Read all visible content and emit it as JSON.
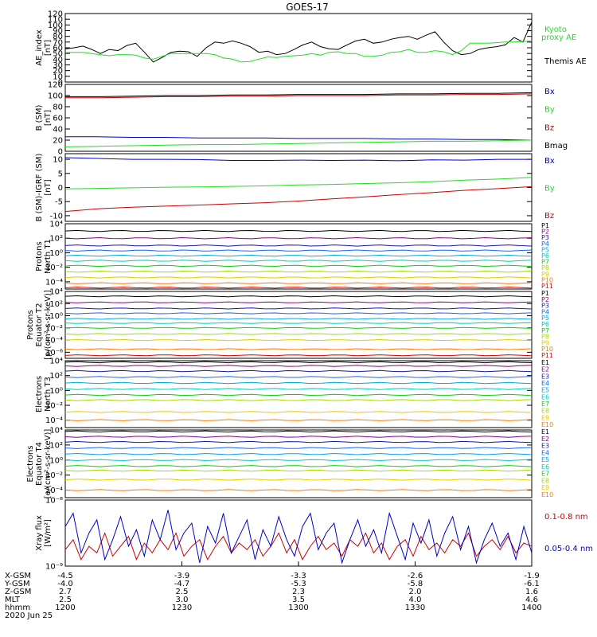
{
  "title": "GOES-17",
  "colors": {
    "black": "#000000",
    "green": "#22dd22",
    "blue": "#0000cc",
    "red": "#cc0000"
  },
  "chart_data": [
    {
      "type": "line",
      "ylabel": [
        "AE_index",
        "[nT]"
      ],
      "ylim": [
        0,
        120
      ],
      "ticks": [
        "0",
        "10",
        "20",
        "30",
        "40",
        "50",
        "60",
        "70",
        "80",
        "90",
        "100",
        "110",
        "120"
      ],
      "tick_values": [
        0,
        10,
        20,
        30,
        40,
        50,
        60,
        70,
        80,
        90,
        100,
        110,
        120
      ],
      "legend": [
        {
          "name": "Kyoto",
          "color": "green"
        },
        {
          "name": "proxy AE",
          "color": "green"
        },
        {
          "name": "Themis AE",
          "color": "black"
        }
      ],
      "series": [
        {
          "name": "Themis AE",
          "color": "black",
          "values": [
            58,
            60,
            63,
            57,
            50,
            57,
            55,
            64,
            68,
            52,
            35,
            43,
            52,
            54,
            53,
            45,
            60,
            70,
            68,
            72,
            68,
            62,
            52,
            54,
            48,
            50,
            57,
            65,
            70,
            62,
            58,
            57,
            65,
            72,
            75,
            68,
            70,
            75,
            78,
            80,
            75,
            82,
            88,
            70,
            55,
            48,
            50,
            57,
            60,
            62,
            65,
            78,
            70,
            105
          ]
        },
        {
          "name": "Kyoto proxy AE",
          "color": "green",
          "values": [
            52,
            52,
            52,
            50,
            48,
            46,
            48,
            48,
            47,
            42,
            40,
            45,
            50,
            50,
            50,
            50,
            50,
            48,
            42,
            40,
            35,
            36,
            40,
            44,
            43,
            45,
            46,
            47,
            50,
            47,
            52,
            53,
            50,
            50,
            45,
            45,
            47,
            52,
            53,
            57,
            52,
            52,
            55,
            53,
            48,
            55,
            68,
            68,
            68,
            69,
            70,
            70,
            71,
            72
          ]
        }
      ]
    },
    {
      "type": "line",
      "ylabel": [
        "B (SM)",
        "[nT]"
      ],
      "ylim": [
        0,
        120
      ],
      "ticks": [
        "0",
        "20",
        "40",
        "60",
        "80",
        "100",
        "120"
      ],
      "tick_values": [
        0,
        20,
        40,
        60,
        80,
        100,
        120
      ],
      "legend": [
        {
          "name": "Bx",
          "color": "blue"
        },
        {
          "name": "By",
          "color": "green"
        },
        {
          "name": "Bz",
          "color": "red"
        },
        {
          "name": "Bmag",
          "color": "black"
        }
      ],
      "series": [
        {
          "name": "Bmag",
          "color": "black",
          "values": [
            98,
            98,
            99,
            100,
            100,
            101,
            101,
            102,
            102,
            102,
            103,
            103,
            104,
            104,
            105
          ]
        },
        {
          "name": "Bz",
          "color": "red",
          "values": [
            96,
            96,
            97,
            98,
            98,
            99,
            99,
            100,
            100,
            100,
            101,
            101,
            102,
            102,
            103
          ]
        },
        {
          "name": "Bx",
          "color": "blue",
          "values": [
            26,
            26,
            25,
            25,
            24,
            24,
            24,
            23,
            23,
            23,
            22,
            22,
            21,
            21,
            20
          ]
        },
        {
          "name": "By",
          "color": "green",
          "values": [
            8,
            9,
            10,
            11,
            12,
            12,
            13,
            14,
            15,
            16,
            17,
            18,
            18,
            19,
            20
          ]
        }
      ]
    },
    {
      "type": "line",
      "ylabel": [
        "B (SM)-IGRF (SM)",
        "[nT]"
      ],
      "ylim": [
        -12,
        12
      ],
      "ticks": [
        "-10",
        "-5",
        "0",
        "5",
        "10"
      ],
      "tick_values": [
        -10,
        -5,
        0,
        5,
        10
      ],
      "legend": [
        {
          "name": "Bx",
          "color": "blue"
        },
        {
          "name": "By",
          "color": "green"
        },
        {
          "name": "Bz",
          "color": "red"
        }
      ],
      "series": [
        {
          "name": "Bx",
          "color": "blue",
          "values": [
            10.6,
            10.3,
            10.0,
            10.0,
            9.9,
            9.6,
            9.6,
            9.7,
            9.6,
            9.7,
            9.5,
            9.8,
            9.7,
            10.0,
            10.0
          ]
        },
        {
          "name": "By",
          "color": "green",
          "values": [
            -0.5,
            -0.3,
            -0.1,
            0.1,
            0.2,
            0.4,
            0.6,
            0.9,
            1.1,
            1.4,
            1.7,
            2.1,
            2.6,
            3.0,
            3.6
          ]
        },
        {
          "name": "Bz",
          "color": "red",
          "values": [
            -8.5,
            -7.5,
            -7.0,
            -6.6,
            -6.2,
            -5.8,
            -5.4,
            -4.8,
            -4.0,
            -3.3,
            -2.5,
            -1.8,
            -1.0,
            -0.4,
            0.3
          ]
        }
      ]
    },
    {
      "type": "line",
      "ylabel": [
        "Protons",
        "North T1"
      ],
      "ylim": [
        -5,
        4
      ],
      "log": true,
      "ticks": [
        "10⁻⁴",
        "10⁻²",
        "10⁰",
        "10²",
        "10⁴"
      ],
      "tick_values": [
        -4,
        -2,
        0,
        2,
        4
      ],
      "legend": [
        "P1",
        "P2",
        "P3",
        "P4",
        "P5",
        "P6",
        "P7",
        "P8",
        "P9",
        "P10",
        "P11"
      ],
      "levels": [
        3.0,
        2.0,
        1.0,
        0.3,
        -0.4,
        -1.1,
        -1.8,
        -2.6,
        -3.4,
        -4.2,
        -4.8
      ]
    },
    {
      "type": "line",
      "ylabel": [
        "Protons",
        "Equator T2",
        "[p/(cm²-s-sr-keV)]"
      ],
      "ylim": [
        -7,
        4
      ],
      "log": true,
      "ticks": [
        "10⁻⁶",
        "10⁻⁴",
        "10⁻²",
        "10⁰",
        "10²",
        "10⁴"
      ],
      "tick_values": [
        -6,
        -4,
        -2,
        0,
        2,
        4
      ],
      "legend": [
        "P1",
        "P2",
        "P3",
        "P4",
        "P5",
        "P6",
        "P7",
        "P8",
        "P9",
        "P10",
        "P11"
      ],
      "levels": [
        3.2,
        2.2,
        1.2,
        0.4,
        -0.5,
        -1.2,
        -2.0,
        -3.0,
        -4.0,
        -5.5,
        -6.5
      ]
    },
    {
      "type": "line",
      "ylabel": [
        "Electrons",
        "North T3"
      ],
      "ylim": [
        -5,
        4
      ],
      "log": true,
      "ticks": [
        "10⁻⁴",
        "10⁻²",
        "10⁰",
        "10²",
        "10⁴"
      ],
      "tick_values": [
        -4,
        -2,
        0,
        2,
        4
      ],
      "legend": [
        "E1",
        "E2",
        "E3",
        "E4",
        "E5",
        "E6",
        "E7",
        "E8",
        "E9",
        "E10"
      ],
      "levels": [
        3.8,
        3.3,
        2.6,
        1.8,
        1.0,
        0.2,
        -0.6,
        -1.3,
        -2.9,
        -4.0
      ]
    },
    {
      "type": "line",
      "ylabel": [
        "Electrons",
        "Equator T4",
        "[e/(cm²-s-sr-keV)]"
      ],
      "ylim": [
        -5,
        4
      ],
      "log": true,
      "ticks": [
        "10⁻⁴",
        "10⁻²",
        "10⁰",
        "10²",
        "10⁴"
      ],
      "tick_values": [
        -4,
        -2,
        0,
        2,
        4
      ],
      "legend": [
        "E1",
        "E2",
        "E3",
        "E4",
        "E5",
        "E6",
        "E7",
        "E8",
        "E9",
        "E10"
      ],
      "levels": [
        3.8,
        3.1,
        2.4,
        1.6,
        0.8,
        0.0,
        -0.8,
        -1.4,
        -2.6,
        -4.0
      ]
    },
    {
      "type": "line",
      "ylabel": [
        "Xray flux",
        "[W/m²]"
      ],
      "ylim": [
        -9,
        -8
      ],
      "log": true,
      "ticks": [
        "10⁻⁹",
        "10⁻⁸"
      ],
      "tick_values": [
        -9,
        -8
      ],
      "legend": [
        {
          "name": "0.1-0.8 nm",
          "color": "red"
        },
        {
          "name": "0.05-0.4 nm",
          "color": "blue"
        }
      ],
      "series": [
        {
          "name": "0.1-0.8 nm",
          "color": "red",
          "values": [
            -8.75,
            -8.6,
            -8.9,
            -8.7,
            -8.8,
            -8.5,
            -8.85,
            -8.7,
            -8.55,
            -8.9,
            -8.65,
            -8.8,
            -8.6,
            -8.75,
            -8.5,
            -8.85,
            -8.7,
            -8.6,
            -8.9,
            -8.7,
            -8.55,
            -8.8,
            -8.65,
            -8.75,
            -8.6,
            -8.85,
            -8.7,
            -8.5,
            -8.8,
            -8.6,
            -8.9,
            -8.7,
            -8.55,
            -8.75,
            -8.65,
            -8.85,
            -8.6,
            -8.7,
            -8.5,
            -8.8,
            -8.65,
            -8.9,
            -8.7,
            -8.6,
            -8.85,
            -8.55,
            -8.75,
            -8.65,
            -8.8,
            -8.6,
            -8.7,
            -8.5,
            -8.85,
            -8.7,
            -8.6,
            -8.75,
            -8.55,
            -8.8,
            -8.65,
            -8.7
          ]
        },
        {
          "name": "0.05-0.4 nm",
          "color": "blue",
          "values": [
            -8.4,
            -8.2,
            -8.8,
            -8.5,
            -8.3,
            -8.9,
            -8.6,
            -8.25,
            -8.7,
            -8.45,
            -8.85,
            -8.3,
            -8.6,
            -8.15,
            -8.75,
            -8.5,
            -8.35,
            -8.95,
            -8.4,
            -8.65,
            -8.2,
            -8.8,
            -8.55,
            -8.3,
            -8.9,
            -8.45,
            -8.7,
            -8.25,
            -8.6,
            -8.85,
            -8.4,
            -8.2,
            -8.75,
            -8.5,
            -8.35,
            -8.95,
            -8.6,
            -8.3,
            -8.7,
            -8.45,
            -8.8,
            -8.2,
            -8.55,
            -8.9,
            -8.35,
            -8.65,
            -8.3,
            -8.85,
            -8.5,
            -8.25,
            -8.75,
            -8.4,
            -8.95,
            -8.6,
            -8.35,
            -8.7,
            -8.5,
            -8.9,
            -8.4,
            -8.8
          ]
        }
      ]
    }
  ],
  "xaxis": {
    "labels": [
      "X-GSM",
      "Y-GSM",
      "Z-GSM",
      "MLT",
      "hhmm"
    ],
    "date": "2020 Jun 25",
    "columns": [
      {
        "x": "-4.5",
        "y": "-4.0",
        "z": "2.7",
        "mlt": "2.5",
        "hhmm": "1200"
      },
      {
        "x": "-3.9",
        "y": "-4.7",
        "z": "2.5",
        "mlt": "3.0",
        "hhmm": "1230"
      },
      {
        "x": "-3.3",
        "y": "-5.3",
        "z": "2.3",
        "mlt": "3.5",
        "hhmm": "1300"
      },
      {
        "x": "-2.6",
        "y": "-5.8",
        "z": "2.0",
        "mlt": "4.0",
        "hhmm": "1330"
      },
      {
        "x": "-1.9",
        "y": "-6.1",
        "z": "1.6",
        "mlt": "4.6",
        "hhmm": "1400"
      }
    ]
  }
}
